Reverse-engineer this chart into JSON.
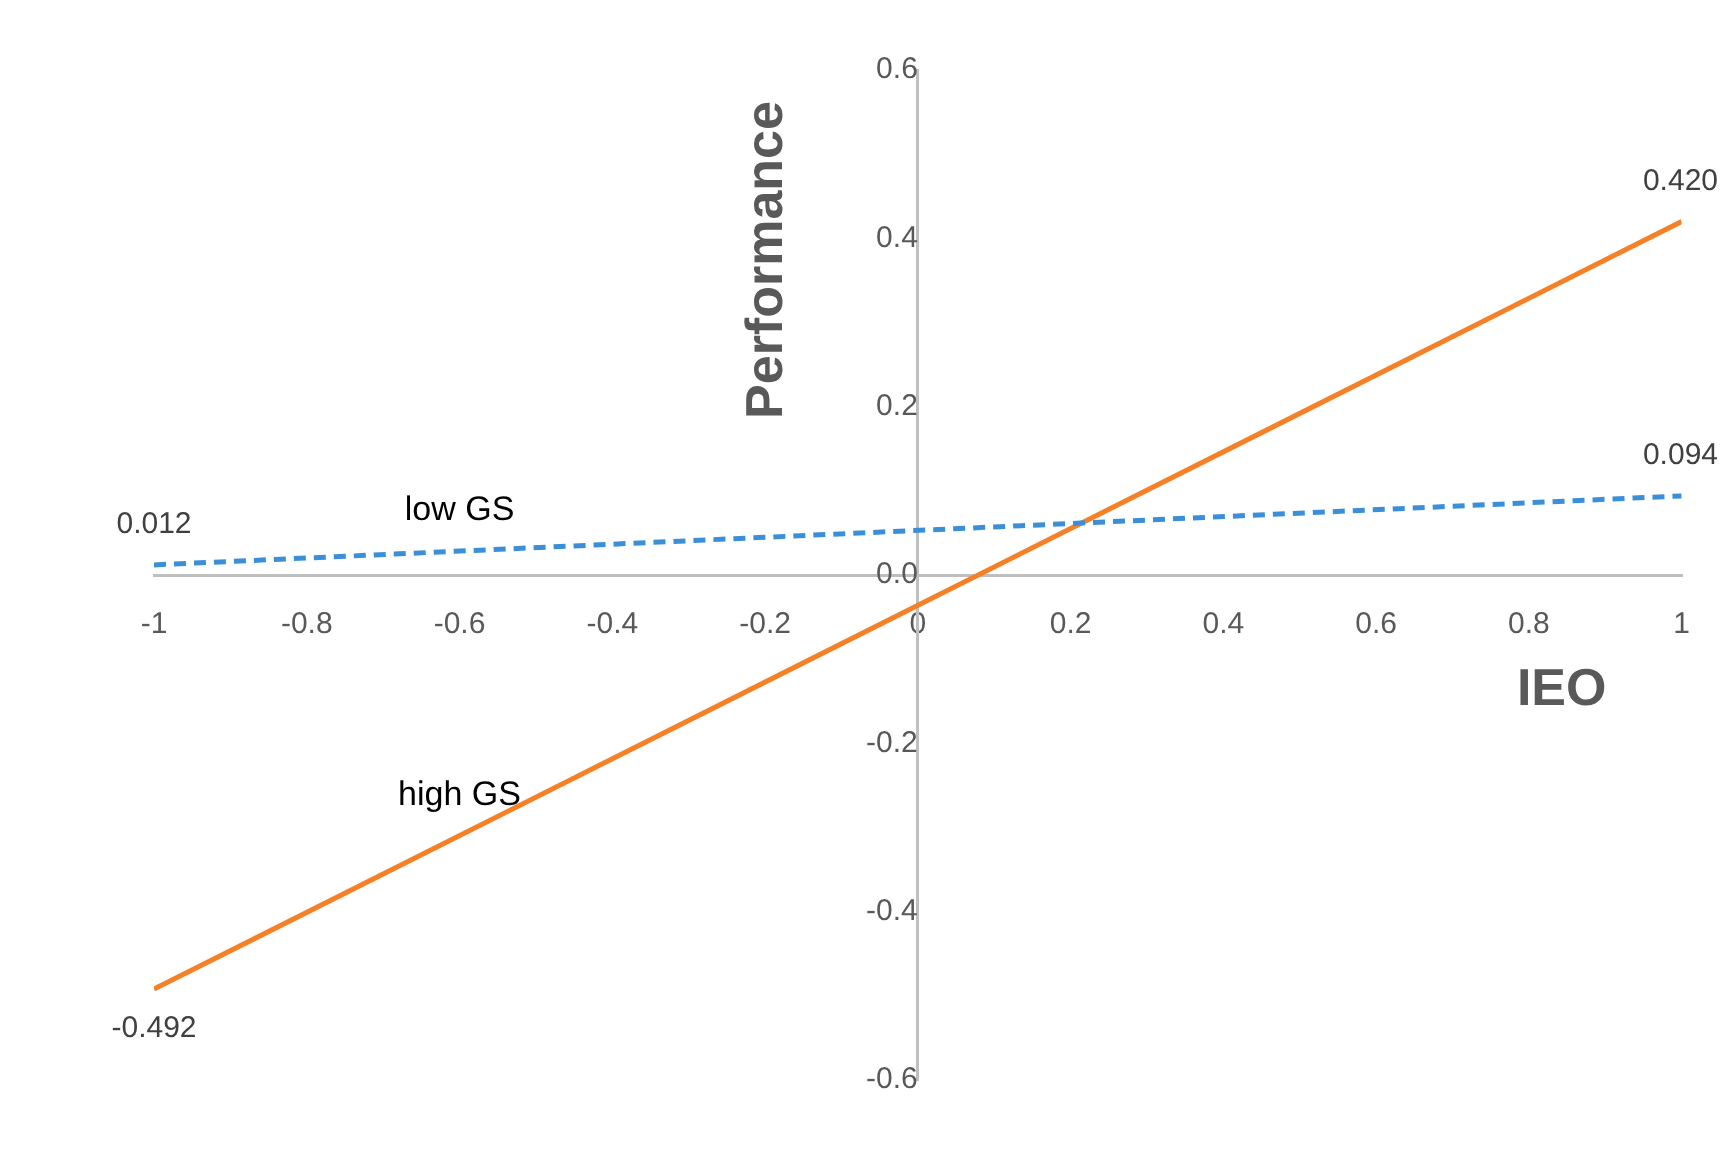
{
  "chart_data": {
    "type": "line",
    "xlabel": "IEO",
    "ylabel": "Performance",
    "xlim": [
      -1,
      1
    ],
    "xticks": [
      -1,
      -0.8,
      -0.6,
      -0.4,
      -0.2,
      0,
      0.2,
      0.4,
      0.6,
      0.8,
      1
    ],
    "ylim": [
      -0.6,
      0.6
    ],
    "yticks": [
      -0.6,
      -0.4,
      -0.2,
      {
        "value": 0,
        "label": "0.0"
      },
      0.2,
      0.4,
      0.6
    ],
    "x": [
      -1,
      1
    ],
    "series": [
      {
        "name": "low GS",
        "color": "#3b8fd9",
        "values": [
          0.012,
          0.094
        ],
        "value_labels": [
          "0.012",
          "0.094"
        ],
        "line_style": "dashed"
      },
      {
        "name": "high GS",
        "color": "#f58025",
        "values": [
          -0.492,
          0.42
        ],
        "value_labels": [
          "-0.492",
          "0.420"
        ],
        "line_style": "solid"
      }
    ],
    "marker": "none",
    "grid": false,
    "legend": false
  }
}
